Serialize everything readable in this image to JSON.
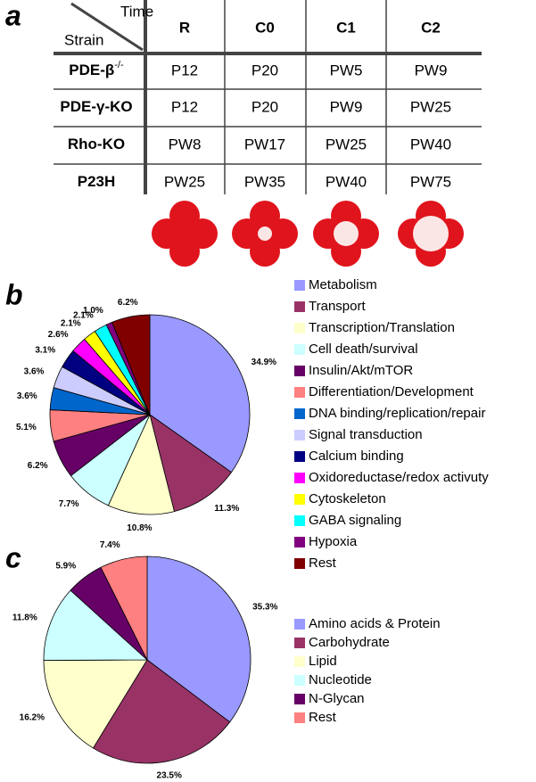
{
  "panels": [
    "a",
    "b",
    "c"
  ],
  "table": {
    "corner_top": "Time",
    "corner_bottom": "Strain",
    "columns": [
      "R",
      "C0",
      "C1",
      "C2"
    ],
    "rows": [
      {
        "label": "PDE-β",
        "sup": "-/-",
        "cells": [
          "P12",
          "P20",
          "PW5",
          "PW9"
        ]
      },
      {
        "label": "PDE-γ-KO",
        "cells": [
          "P12",
          "P20",
          "PW9",
          "PW25"
        ]
      },
      {
        "label": "Rho-KO",
        "cells": [
          "PW8",
          "PW17",
          "PW25",
          "PW40"
        ]
      },
      {
        "label": "P23H",
        "cells": [
          "PW25",
          "PW35",
          "PW40",
          "PW75"
        ]
      }
    ]
  },
  "chart_data": [
    {
      "type": "pie",
      "categories": [
        "Metabolism",
        "Transport",
        "Transcription/Translation",
        "Cell death/survival",
        "Insulin/Akt/mTOR",
        "Differentiation/Development",
        "DNA binding/replication/repair",
        "Signal transduction",
        "Calcium binding",
        "Oxidoreductase/redox activuty",
        "Cytoskeleton",
        "GABA signaling",
        "Hypoxia",
        "Rest"
      ],
      "values": [
        34.9,
        11.3,
        10.8,
        7.7,
        6.2,
        5.1,
        3.6,
        3.6,
        3.1,
        2.6,
        2.1,
        2.1,
        1.0,
        6.2
      ],
      "value_labels": [
        "34.9%",
        "11.3%",
        "10.8%",
        "7.7%",
        "6.2%",
        "5.1%",
        "3.6%",
        "3.6%",
        "3.1%",
        "2.6%",
        "2.1%",
        "2.1%",
        "1.0%",
        "6.2%"
      ],
      "colors": [
        "#9999ff",
        "#993366",
        "#ffffcc",
        "#ccffff",
        "#660066",
        "#ff8080",
        "#0066cc",
        "#ccccff",
        "#000080",
        "#ff00ff",
        "#ffff00",
        "#00ffff",
        "#800080",
        "#800000"
      ]
    },
    {
      "type": "pie",
      "categories": [
        "Amino acids & Protein",
        "Carbohydrate",
        "Lipid",
        "Nucleotide",
        "N-Glycan",
        "Rest"
      ],
      "values": [
        35.3,
        23.5,
        16.2,
        11.8,
        5.9,
        7.4
      ],
      "value_labels": [
        "35.3%",
        "23.5%",
        "16.2%",
        "11.8%",
        "5.9%",
        "7.4%"
      ],
      "colors": [
        "#9999ff",
        "#993366",
        "#ffffcc",
        "#ccffff",
        "#660066",
        "#ff8080"
      ]
    }
  ]
}
